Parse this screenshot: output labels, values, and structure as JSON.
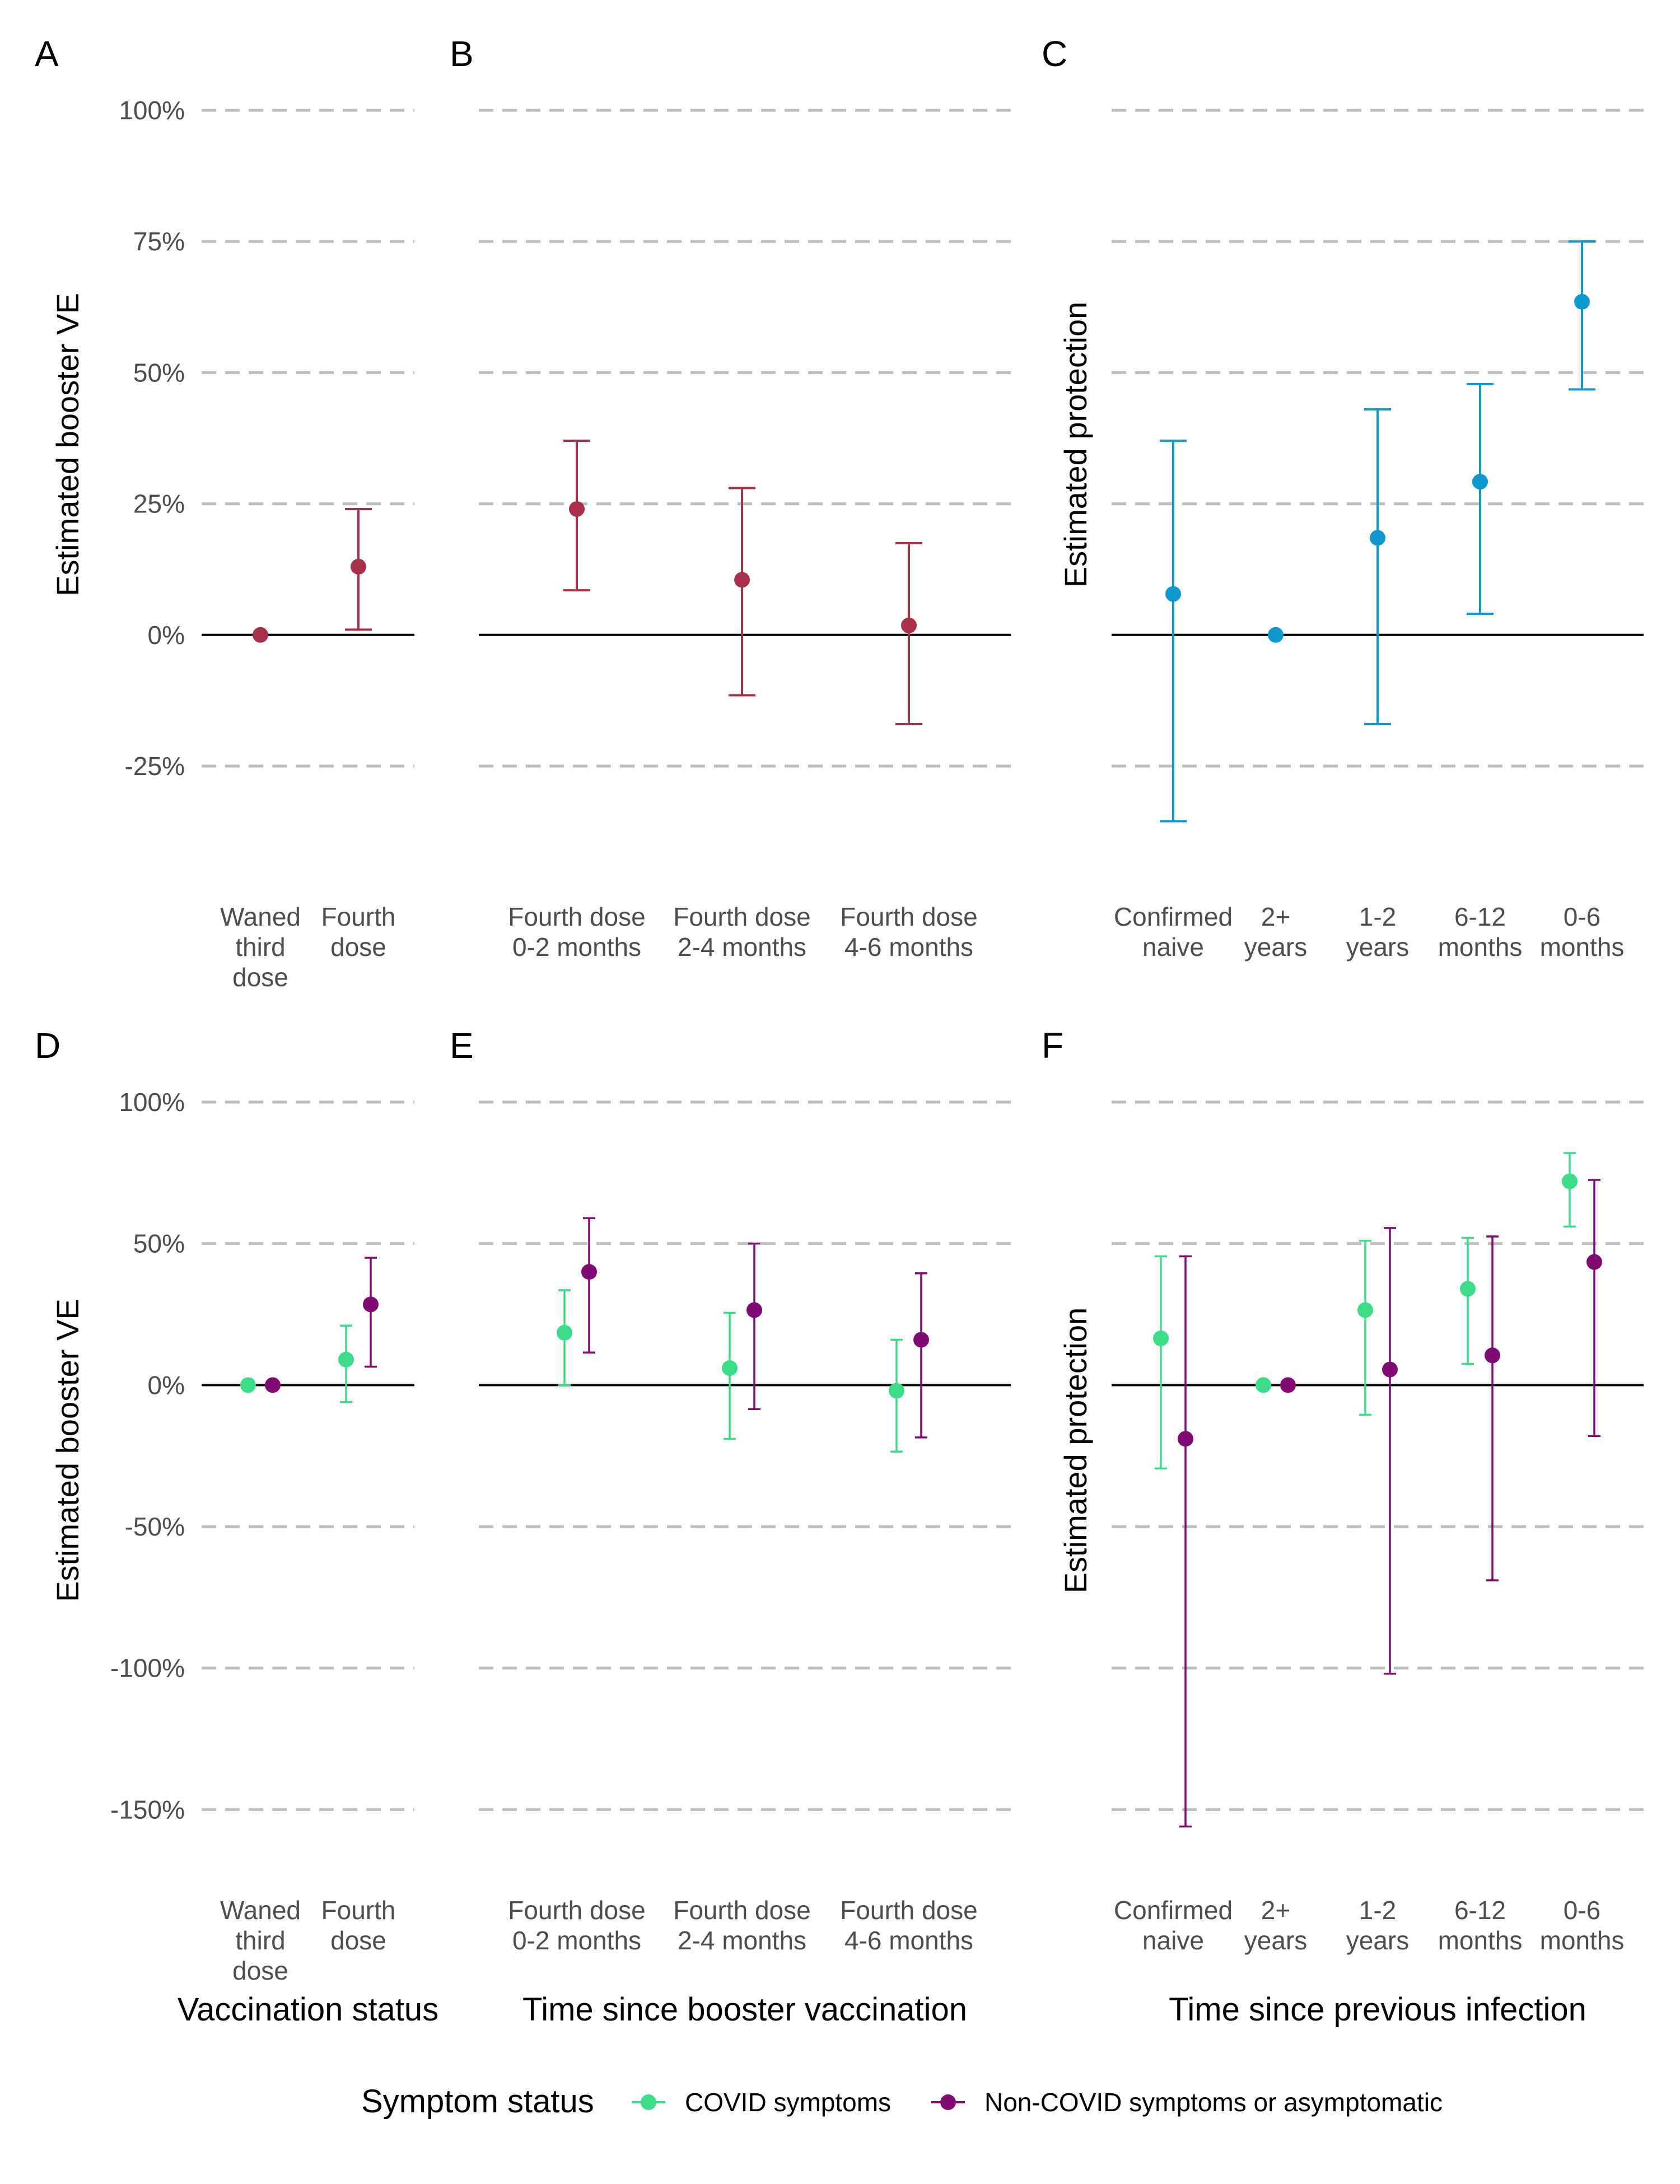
{
  "colors": {
    "single": "#a8304b",
    "protection": "#0f97d0",
    "covid": "#3cdc88",
    "noncovid": "#800b74",
    "grid": "#bdbdbd",
    "zero": "#000000",
    "tick": "#4d4d4d"
  },
  "legend": {
    "title": "Symptom status",
    "items": [
      {
        "label": "COVID symptoms",
        "color": "#3cdc88"
      },
      {
        "label": "Non-COVID symptoms or asymptomatic",
        "color": "#800b74"
      }
    ]
  },
  "x_titles": {
    "left": "Vaccination status",
    "middle": "Time since booster vaccination",
    "right": "Time since previous infection"
  },
  "chart_data": [
    {
      "panel": "A",
      "type": "scatter",
      "ylabel": "Estimated booster VE",
      "ylim": [
        -0.36,
        1.0
      ],
      "yticks": [
        -0.25,
        0,
        0.25,
        0.5,
        0.75,
        1.0
      ],
      "ytick_labels": [
        "-25%",
        "0%",
        "25%",
        "50%",
        "75%",
        "100%"
      ],
      "categories": [
        [
          "Waned",
          "third",
          "dose"
        ],
        [
          "Fourth",
          "dose"
        ]
      ],
      "series": [
        {
          "color": "#a8304b",
          "points": [
            {
              "y": 0.0,
              "lo": null,
              "hi": null
            },
            {
              "y": 0.13,
              "lo": 0.01,
              "hi": 0.24
            }
          ]
        }
      ]
    },
    {
      "panel": "B",
      "type": "scatter",
      "ylim": [
        -0.36,
        1.0
      ],
      "yticks": [
        -0.25,
        0,
        0.25,
        0.5,
        0.75,
        1.0
      ],
      "categories": [
        [
          "Fourth dose",
          "0-2 months"
        ],
        [
          "Fourth dose",
          "2-4 months"
        ],
        [
          "Fourth dose",
          "4-6 months"
        ]
      ],
      "series": [
        {
          "color": "#a8304b",
          "points": [
            {
              "y": 0.24,
              "lo": 0.085,
              "hi": 0.37
            },
            {
              "y": 0.105,
              "lo": -0.115,
              "hi": 0.28
            },
            {
              "y": 0.018,
              "lo": -0.17,
              "hi": 0.175
            }
          ]
        }
      ]
    },
    {
      "panel": "C",
      "type": "scatter",
      "ylabel": "Estimated protection",
      "ylim": [
        -0.36,
        1.0
      ],
      "yticks": [
        -0.25,
        0,
        0.25,
        0.5,
        0.75,
        1.0
      ],
      "categories": [
        [
          "Confirmed",
          "naive"
        ],
        [
          "2+",
          "years"
        ],
        [
          "1-2",
          "years"
        ],
        [
          "6-12",
          "months"
        ],
        [
          "0-6",
          "months"
        ]
      ],
      "series": [
        {
          "color": "#0f97d0",
          "points": [
            {
              "y": 0.078,
              "lo": -0.355,
              "hi": 0.37
            },
            {
              "y": 0.0,
              "lo": null,
              "hi": null
            },
            {
              "y": 0.185,
              "lo": -0.17,
              "hi": 0.43
            },
            {
              "y": 0.292,
              "lo": 0.04,
              "hi": 0.478
            },
            {
              "y": 0.635,
              "lo": 0.468,
              "hi": 0.75
            }
          ]
        }
      ]
    },
    {
      "panel": "D",
      "type": "scatter",
      "ylabel": "Estimated booster VE",
      "ylim": [
        -1.62,
        1.0
      ],
      "yticks": [
        -1.5,
        -1.0,
        -0.5,
        0,
        0.5,
        1.0
      ],
      "ytick_labels": [
        "-150%",
        "-100%",
        "-50%",
        "0%",
        "50%",
        "100%"
      ],
      "categories": [
        [
          "Waned",
          "third",
          "dose"
        ],
        [
          "Fourth",
          "dose"
        ]
      ],
      "series": [
        {
          "name": "COVID symptoms",
          "color": "#3cdc88",
          "points": [
            {
              "y": 0.0,
              "lo": null,
              "hi": null
            },
            {
              "y": 0.09,
              "lo": -0.06,
              "hi": 0.21
            }
          ]
        },
        {
          "name": "Non-COVID symptoms or asymptomatic",
          "color": "#800b74",
          "points": [
            {
              "y": 0.0,
              "lo": null,
              "hi": null
            },
            {
              "y": 0.285,
              "lo": 0.065,
              "hi": 0.45
            }
          ]
        }
      ]
    },
    {
      "panel": "E",
      "type": "scatter",
      "ylim": [
        -1.62,
        1.0
      ],
      "yticks": [
        -1.5,
        -1.0,
        -0.5,
        0,
        0.5,
        1.0
      ],
      "categories": [
        [
          "Fourth dose",
          "0-2 months"
        ],
        [
          "Fourth dose",
          "2-4 months"
        ],
        [
          "Fourth dose",
          "4-6 months"
        ]
      ],
      "series": [
        {
          "name": "COVID symptoms",
          "color": "#3cdc88",
          "points": [
            {
              "y": 0.185,
              "lo": 0.0,
              "hi": 0.335
            },
            {
              "y": 0.06,
              "lo": -0.19,
              "hi": 0.255
            },
            {
              "y": -0.02,
              "lo": -0.235,
              "hi": 0.16
            }
          ]
        },
        {
          "name": "Non-COVID symptoms or asymptomatic",
          "color": "#800b74",
          "points": [
            {
              "y": 0.4,
              "lo": 0.115,
              "hi": 0.59
            },
            {
              "y": 0.265,
              "lo": -0.085,
              "hi": 0.5
            },
            {
              "y": 0.16,
              "lo": -0.185,
              "hi": 0.395
            }
          ]
        }
      ]
    },
    {
      "panel": "F",
      "type": "scatter",
      "ylabel": "Estimated protection",
      "ylim": [
        -1.62,
        1.0
      ],
      "yticks": [
        -1.5,
        -1.0,
        -0.5,
        0,
        0.5,
        1.0
      ],
      "categories": [
        [
          "Confirmed",
          "naive"
        ],
        [
          "2+",
          "years"
        ],
        [
          "1-2",
          "years"
        ],
        [
          "6-12",
          "months"
        ],
        [
          "0-6",
          "months"
        ]
      ],
      "series": [
        {
          "name": "COVID symptoms",
          "color": "#3cdc88",
          "points": [
            {
              "y": 0.165,
              "lo": -0.295,
              "hi": 0.455
            },
            {
              "y": 0.0,
              "lo": null,
              "hi": null
            },
            {
              "y": 0.265,
              "lo": -0.105,
              "hi": 0.51
            },
            {
              "y": 0.34,
              "lo": 0.075,
              "hi": 0.52
            },
            {
              "y": 0.72,
              "lo": 0.56,
              "hi": 0.82
            }
          ]
        },
        {
          "name": "Non-COVID symptoms or asymptomatic",
          "color": "#800b74",
          "points": [
            {
              "y": -0.19,
              "lo": -1.56,
              "hi": 0.455
            },
            {
              "y": 0.0,
              "lo": null,
              "hi": null
            },
            {
              "y": 0.055,
              "lo": -1.02,
              "hi": 0.555
            },
            {
              "y": 0.105,
              "lo": -0.69,
              "hi": 0.525
            },
            {
              "y": 0.435,
              "lo": -0.18,
              "hi": 0.725
            }
          ]
        }
      ]
    }
  ]
}
